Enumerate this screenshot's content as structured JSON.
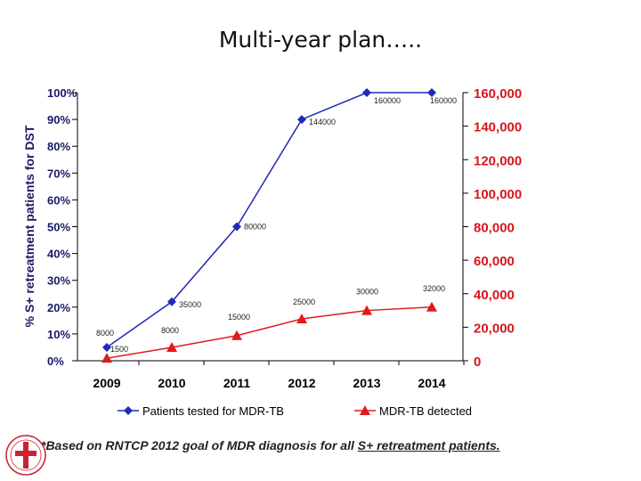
{
  "slide": {
    "title": "Multi-year plan…..",
    "footnote_prefix": "*Based on RNTCP 2012 goal of MDR diagnosis for all ",
    "footnote_underlined": "S+ retreatment patients."
  },
  "chart_data": {
    "type": "line",
    "categories": [
      "2009",
      "2010",
      "2011",
      "2012",
      "2013",
      "2014"
    ],
    "ylabel": "% S+ retreatment patients for DST",
    "ylim": [
      0,
      100
    ],
    "y_ticks": [
      "0%",
      "10%",
      "20%",
      "30%",
      "40%",
      "50%",
      "60%",
      "70%",
      "80%",
      "90%",
      "100%"
    ],
    "y2lim": [
      0,
      160000
    ],
    "y2_ticks": [
      "0",
      "20,000",
      "40,000",
      "60,000",
      "80,000",
      "100,000",
      "120,000",
      "140,000",
      "160,000"
    ],
    "legend_position": "bottom",
    "series": [
      {
        "name": "Patients tested for MDR-TB",
        "axis": "left",
        "color": "#1f2ab8",
        "marker": "diamond",
        "values": [
          5,
          22,
          50,
          90,
          100,
          100
        ],
        "labels": [
          "8000",
          "35000",
          "80000",
          "144000",
          "160000",
          "160000"
        ]
      },
      {
        "name": "MDR-TB detected",
        "axis": "right",
        "color": "#e01b1b",
        "marker": "triangle",
        "values": [
          1500,
          8000,
          15000,
          25000,
          30000,
          32000
        ],
        "labels": [
          "1500",
          "8000",
          "15000",
          "25000",
          "30000",
          "32000"
        ]
      }
    ]
  },
  "colors": {
    "right_axis_text": "#d9141d",
    "left_axis_text": "#1a1a66"
  }
}
